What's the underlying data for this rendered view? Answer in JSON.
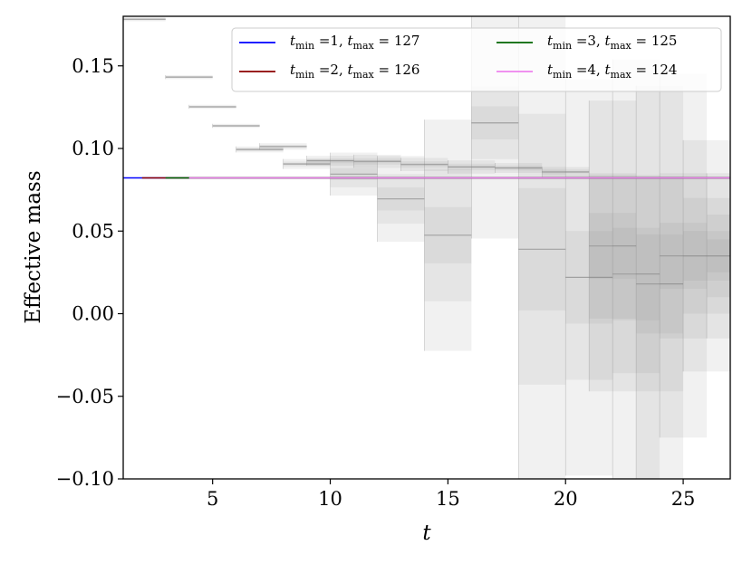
{
  "chart_data": {
    "type": "line",
    "xlabel": "t",
    "ylabel": "Effective mass",
    "xlim": [
      1.2,
      27
    ],
    "ylim": [
      -0.1,
      0.18
    ],
    "xticks": [
      {
        "v": 5,
        "label": "5"
      },
      {
        "v": 10,
        "label": "10"
      },
      {
        "v": 15,
        "label": "15"
      },
      {
        "v": 20,
        "label": "20"
      },
      {
        "v": 25,
        "label": "25"
      }
    ],
    "yticks": [
      {
        "v": 0.15,
        "label": "0.15"
      },
      {
        "v": 0.1,
        "label": "0.10"
      },
      {
        "v": 0.05,
        "label": "0.05"
      },
      {
        "v": 0.0,
        "label": "0.00"
      },
      {
        "v": -0.05,
        "label": "−0.05"
      },
      {
        "v": -0.1,
        "label": "−0.10"
      }
    ],
    "fits": [
      {
        "tmin": 1,
        "tmax": 127,
        "t_from": 1.2,
        "t_to": 27,
        "value": 0.0822,
        "color": "#0000ff",
        "label_tmin": "1",
        "label_tmax": "127"
      },
      {
        "tmin": 2,
        "tmax": 126,
        "t_from": 2,
        "t_to": 27,
        "value": 0.0822,
        "color": "#8b0000",
        "label_tmin": "2",
        "label_tmax": "126"
      },
      {
        "tmin": 3,
        "tmax": 125,
        "t_from": 3,
        "t_to": 27,
        "value": 0.0822,
        "color": "#006400",
        "label_tmin": "3",
        "label_tmax": "125"
      },
      {
        "tmin": 4,
        "tmax": 124,
        "t_from": 4,
        "t_to": 27,
        "value": 0.0822,
        "color": "#ee82ee",
        "label_tmin": "4",
        "label_tmax": "124"
      }
    ],
    "effective_mass_bands": [
      {
        "t": 1,
        "center": 0.1782,
        "bands": [
          0.0012,
          0.0006,
          0.0002
        ]
      },
      {
        "t": 3,
        "center": 0.1432,
        "bands": [
          0.0012,
          0.0006,
          0.0002
        ]
      },
      {
        "t": 4,
        "center": 0.1252,
        "bands": [
          0.0012,
          0.0006,
          0.0002
        ]
      },
      {
        "t": 5,
        "center": 0.1137,
        "bands": [
          0.0012,
          0.0006,
          0.0002
        ]
      },
      {
        "t": 6,
        "center": 0.0994,
        "bands": [
          0.0018,
          0.001,
          0.0004
        ]
      },
      {
        "t": 7,
        "center": 0.1012,
        "bands": [
          0.002,
          0.001,
          0.0004
        ]
      },
      {
        "t": 8,
        "center": 0.0906,
        "bands": [
          0.003,
          0.0015,
          0.0006
        ]
      },
      {
        "t": 9,
        "center": 0.0926,
        "bands": [
          0.003,
          0.0015,
          0.0006
        ]
      },
      {
        "t": 10,
        "center": 0.0845,
        "bands": [
          0.013,
          0.008,
          0.0035
        ]
      },
      {
        "t": 11,
        "center": 0.0922,
        "bands": [
          0.004,
          0.002,
          0.0008
        ]
      },
      {
        "t": 12,
        "center": 0.0695,
        "bands": [
          0.026,
          0.015,
          0.007
        ]
      },
      {
        "t": 13,
        "center": 0.0903,
        "bands": [
          0.004,
          0.002,
          0.0008
        ]
      },
      {
        "t": 14,
        "center": 0.0475,
        "bands": [
          0.07,
          0.04,
          0.017
        ]
      },
      {
        "t": 15,
        "center": 0.0888,
        "bands": [
          0.004,
          0.002,
          0.0008
        ]
      },
      {
        "t": 16,
        "center": 0.1155,
        "bands": [
          0.07,
          0.022,
          0.01
        ]
      },
      {
        "t": 17,
        "center": 0.0882,
        "bands": [
          0.003,
          0.0015,
          0.0006
        ]
      },
      {
        "t": 18,
        "center": 0.039,
        "bands": [
          0.15,
          0.082,
          0.037
        ]
      },
      {
        "t": 19,
        "center": 0.0858,
        "bands": [
          0.003,
          0.0015,
          0.0006
        ]
      },
      {
        "t": 20,
        "center": 0.022,
        "bands": [
          0.12,
          0.062,
          0.028
        ]
      },
      {
        "t": 21,
        "center": 0.041,
        "bands": [
          0.088,
          0.044,
          0.02
        ]
      },
      {
        "t": 22,
        "center": 0.024,
        "bands": [
          0.13,
          0.06,
          0.028
        ]
      },
      {
        "t": 23,
        "center": 0.018,
        "bands": [
          0.12,
          0.065,
          0.03
        ]
      },
      {
        "t": 24,
        "center": 0.035,
        "bands": [
          0.11,
          0.05,
          0.02
        ]
      },
      {
        "t": 25,
        "center": 0.035,
        "bands": [
          0.07,
          0.035,
          0.015
        ]
      },
      {
        "t": 26,
        "center": 0.035,
        "bands": [
          0.05,
          0.025,
          0.01
        ]
      }
    ]
  }
}
